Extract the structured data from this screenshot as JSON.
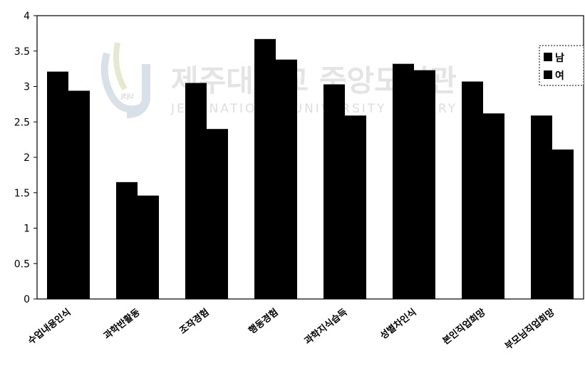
{
  "watermark": {
    "korean": "제주대학교 중앙도서관",
    "english": "JEJU NATIONAL UNIVERSITY LIBRARY",
    "logo_text": "JEJU"
  },
  "chart_data": {
    "type": "bar",
    "title": "",
    "xlabel": "",
    "ylabel": "",
    "ylim": [
      0,
      4
    ],
    "yticks": [
      "0",
      "0.5",
      "1",
      "1.5",
      "2",
      "2.5",
      "3",
      "3.5",
      "4"
    ],
    "categories": [
      "수업내용인식",
      "과학반활동",
      "조작경험",
      "행동경험",
      "과학지식습득",
      "성별차인식",
      "본인직업희망",
      "부모님직업희망"
    ],
    "series": [
      {
        "name": "남",
        "values": [
          3.21,
          1.65,
          3.05,
          3.67,
          3.03,
          3.32,
          3.07,
          2.59
        ]
      },
      {
        "name": "여",
        "values": [
          2.94,
          1.46,
          2.4,
          3.38,
          2.59,
          3.23,
          2.62,
          2.11
        ]
      }
    ],
    "legend_position": "top-right",
    "grid": false,
    "colors": {
      "bar": "#000000",
      "axis": "#000000",
      "background": "#ffffff"
    }
  }
}
